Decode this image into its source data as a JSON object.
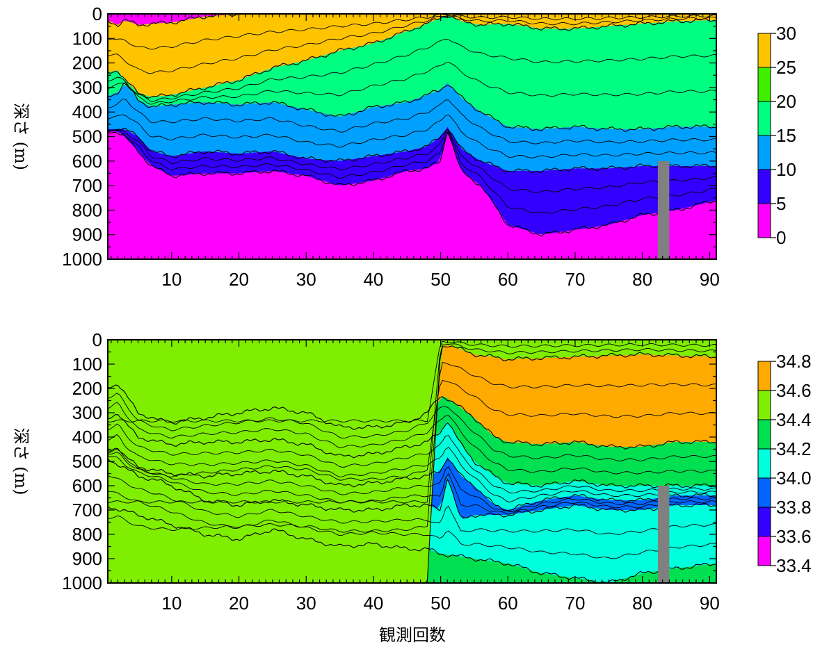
{
  "xlabel": "観測回数",
  "chart_data": [
    {
      "type": "heatmap",
      "title": "",
      "ylabel": "深さ (m)",
      "xlabel": "",
      "xlim": [
        0.5,
        91
      ],
      "ylim": [
        1000,
        0
      ],
      "x_ticks": [
        10,
        20,
        30,
        40,
        50,
        60,
        70,
        80,
        90
      ],
      "y_ticks": [
        0,
        100,
        200,
        300,
        400,
        500,
        600,
        700,
        800,
        900,
        1000
      ],
      "colorbar": {
        "ticks": [
          "0",
          "5",
          "10",
          "15",
          "20",
          "25",
          "30"
        ],
        "colors": [
          "#ff00ff",
          "#3300ff",
          "#00a0ff",
          "#00ff80",
          "#40ee00",
          "#ffc400"
        ]
      },
      "missing_data": {
        "x_range": [
          82.3,
          84
        ],
        "depth_range": [
          600,
          1000
        ],
        "color": "#808080"
      },
      "layer_bounds": [
        {
          "x": [
            0,
            2,
            3,
            5,
            7,
            10,
            15,
            20,
            25,
            30,
            35,
            40,
            45,
            48,
            50,
            51,
            53,
            56,
            60,
            65,
            70,
            75,
            80,
            85,
            91
          ],
          "depth": [
            20,
            45,
            25,
            45,
            40,
            35,
            10,
            0,
            0,
            0,
            0,
            0,
            0,
            0,
            0,
            0,
            0,
            0,
            0,
            0,
            0,
            0,
            0,
            0,
            0
          ]
        },
        {
          "x": [
            0,
            2,
            3,
            5,
            7,
            10,
            15,
            20,
            25,
            30,
            35,
            40,
            45,
            48,
            50,
            51,
            53,
            56,
            60,
            65,
            70,
            75,
            80,
            85,
            91
          ],
          "depth": [
            240,
            230,
            270,
            320,
            340,
            330,
            300,
            270,
            220,
            190,
            150,
            120,
            70,
            40,
            15,
            5,
            30,
            45,
            40,
            60,
            60,
            50,
            40,
            30,
            25
          ]
        },
        {
          "x": [
            0,
            2,
            3,
            5,
            7,
            10,
            15,
            20,
            25,
            30,
            35,
            40,
            45,
            48,
            50,
            51,
            53,
            56,
            60,
            65,
            70,
            75,
            80,
            85,
            91
          ],
          "depth": [
            340,
            320,
            280,
            350,
            380,
            370,
            360,
            370,
            360,
            390,
            420,
            380,
            360,
            330,
            310,
            280,
            340,
            400,
            460,
            470,
            460,
            470,
            470,
            460,
            460
          ]
        },
        {
          "x": [
            0,
            2,
            3,
            5,
            7,
            10,
            15,
            20,
            25,
            30,
            35,
            40,
            45,
            48,
            50,
            51,
            53,
            56,
            60,
            65,
            70,
            75,
            80,
            85,
            91
          ],
          "depth": [
            470,
            470,
            470,
            500,
            560,
            580,
            560,
            570,
            560,
            590,
            600,
            580,
            560,
            540,
            500,
            460,
            550,
            600,
            640,
            640,
            630,
            630,
            620,
            620,
            620
          ]
        },
        {
          "x": [
            0,
            2,
            3,
            5,
            7,
            10,
            15,
            20,
            25,
            30,
            35,
            40,
            45,
            48,
            50,
            51,
            53,
            56,
            60,
            65,
            70,
            75,
            80,
            85,
            91
          ],
          "depth": [
            480,
            480,
            500,
            560,
            620,
            660,
            650,
            650,
            640,
            660,
            700,
            680,
            640,
            630,
            600,
            470,
            640,
            700,
            860,
            900,
            880,
            860,
            820,
            800,
            760
          ]
        }
      ],
      "layer_values": [
        27.5,
        17.5,
        12.5,
        7.5,
        2.5
      ]
    },
    {
      "type": "heatmap",
      "title": "",
      "ylabel": "深さ (m)",
      "xlabel": "",
      "xlim": [
        0.5,
        91
      ],
      "ylim": [
        1000,
        0
      ],
      "x_ticks": [
        10,
        20,
        30,
        40,
        50,
        60,
        70,
        80,
        90
      ],
      "y_ticks": [
        0,
        100,
        200,
        300,
        400,
        500,
        600,
        700,
        800,
        900,
        1000
      ],
      "colorbar": {
        "ticks": [
          "33.4",
          "33.6",
          "33.8",
          "34.0",
          "34.2",
          "34.4",
          "34.6",
          "34.8"
        ],
        "colors": [
          "#ff00ff",
          "#3300ff",
          "#0066ff",
          "#00ffdd",
          "#00e050",
          "#80ee00",
          "#ffaa00"
        ]
      },
      "missing_data": {
        "x_range": [
          82.3,
          84
        ],
        "depth_range": [
          600,
          1000
        ],
        "color": "#808080"
      },
      "layer_bounds": [
        {
          "x": [
            0,
            5,
            10,
            20,
            30,
            40,
            48,
            50,
            51,
            55,
            60,
            70,
            80,
            91
          ],
          "depth": [
            0,
            0,
            0,
            0,
            0,
            0,
            0,
            0,
            0,
            0,
            0,
            0,
            0,
            0
          ]
        },
        {
          "x": [
            0,
            5,
            10,
            20,
            30,
            40,
            48,
            50,
            51,
            55,
            60,
            70,
            80,
            91
          ],
          "depth": [
            1000,
            1000,
            1000,
            1000,
            1000,
            1000,
            1000,
            30,
            20,
            60,
            80,
            70,
            60,
            70
          ]
        },
        {
          "x": [
            0,
            2,
            3,
            5,
            8,
            10,
            15,
            20,
            25,
            30,
            35,
            40,
            45,
            48,
            50,
            51,
            53,
            55,
            58,
            60,
            65,
            70,
            75,
            80,
            85,
            91
          ],
          "depth": [
            200,
            180,
            220,
            300,
            330,
            340,
            320,
            300,
            280,
            300,
            360,
            360,
            340,
            300,
            230,
            240,
            280,
            320,
            400,
            420,
            430,
            420,
            440,
            440,
            420,
            420
          ]
        },
        {
          "x": [
            0,
            2,
            3,
            5,
            8,
            10,
            15,
            20,
            25,
            30,
            35,
            40,
            45,
            48,
            50,
            51,
            53,
            55,
            58,
            60,
            65,
            70,
            75,
            80,
            85,
            91
          ],
          "depth": [
            330,
            300,
            340,
            400,
            420,
            430,
            420,
            420,
            410,
            430,
            480,
            470,
            440,
            420,
            380,
            330,
            430,
            500,
            560,
            590,
            600,
            580,
            600,
            600,
            600,
            600
          ]
        },
        {
          "x": [
            0,
            2,
            3,
            5,
            8,
            10,
            15,
            20,
            25,
            30,
            35,
            40,
            45,
            48,
            50,
            51,
            53,
            55,
            58,
            60,
            65,
            70,
            75,
            80,
            85,
            91
          ],
          "depth": [
            460,
            440,
            480,
            520,
            540,
            550,
            560,
            550,
            540,
            560,
            600,
            590,
            570,
            560,
            540,
            480,
            560,
            600,
            680,
            700,
            660,
            640,
            660,
            660,
            640,
            640
          ]
        },
        {
          "x": [
            0,
            5,
            8,
            10,
            15,
            20,
            25,
            30,
            35,
            40,
            45,
            48,
            50,
            51,
            53,
            55,
            58,
            60,
            65,
            70,
            75,
            80,
            85,
            91
          ],
          "depth": [
            480,
            560,
            580,
            600,
            660,
            680,
            660,
            680,
            700,
            700,
            680,
            680,
            700,
            560,
            740,
            720,
            720,
            720,
            700,
            680,
            700,
            700,
            680,
            680
          ]
        },
        {
          "x": [
            0,
            5,
            10,
            15,
            20,
            25,
            30,
            35,
            40,
            45,
            48,
            50,
            55,
            60,
            65,
            70,
            75,
            80,
            85,
            91
          ],
          "depth": [
            680,
            720,
            760,
            800,
            820,
            780,
            820,
            850,
            840,
            860,
            860,
            880,
            900,
            920,
            960,
            980,
            1000,
            960,
            940,
            920
          ]
        }
      ],
      "layer_values": [
        34.5,
        34.7,
        34.3,
        34.1,
        33.9,
        34.1,
        34.3
      ]
    }
  ]
}
